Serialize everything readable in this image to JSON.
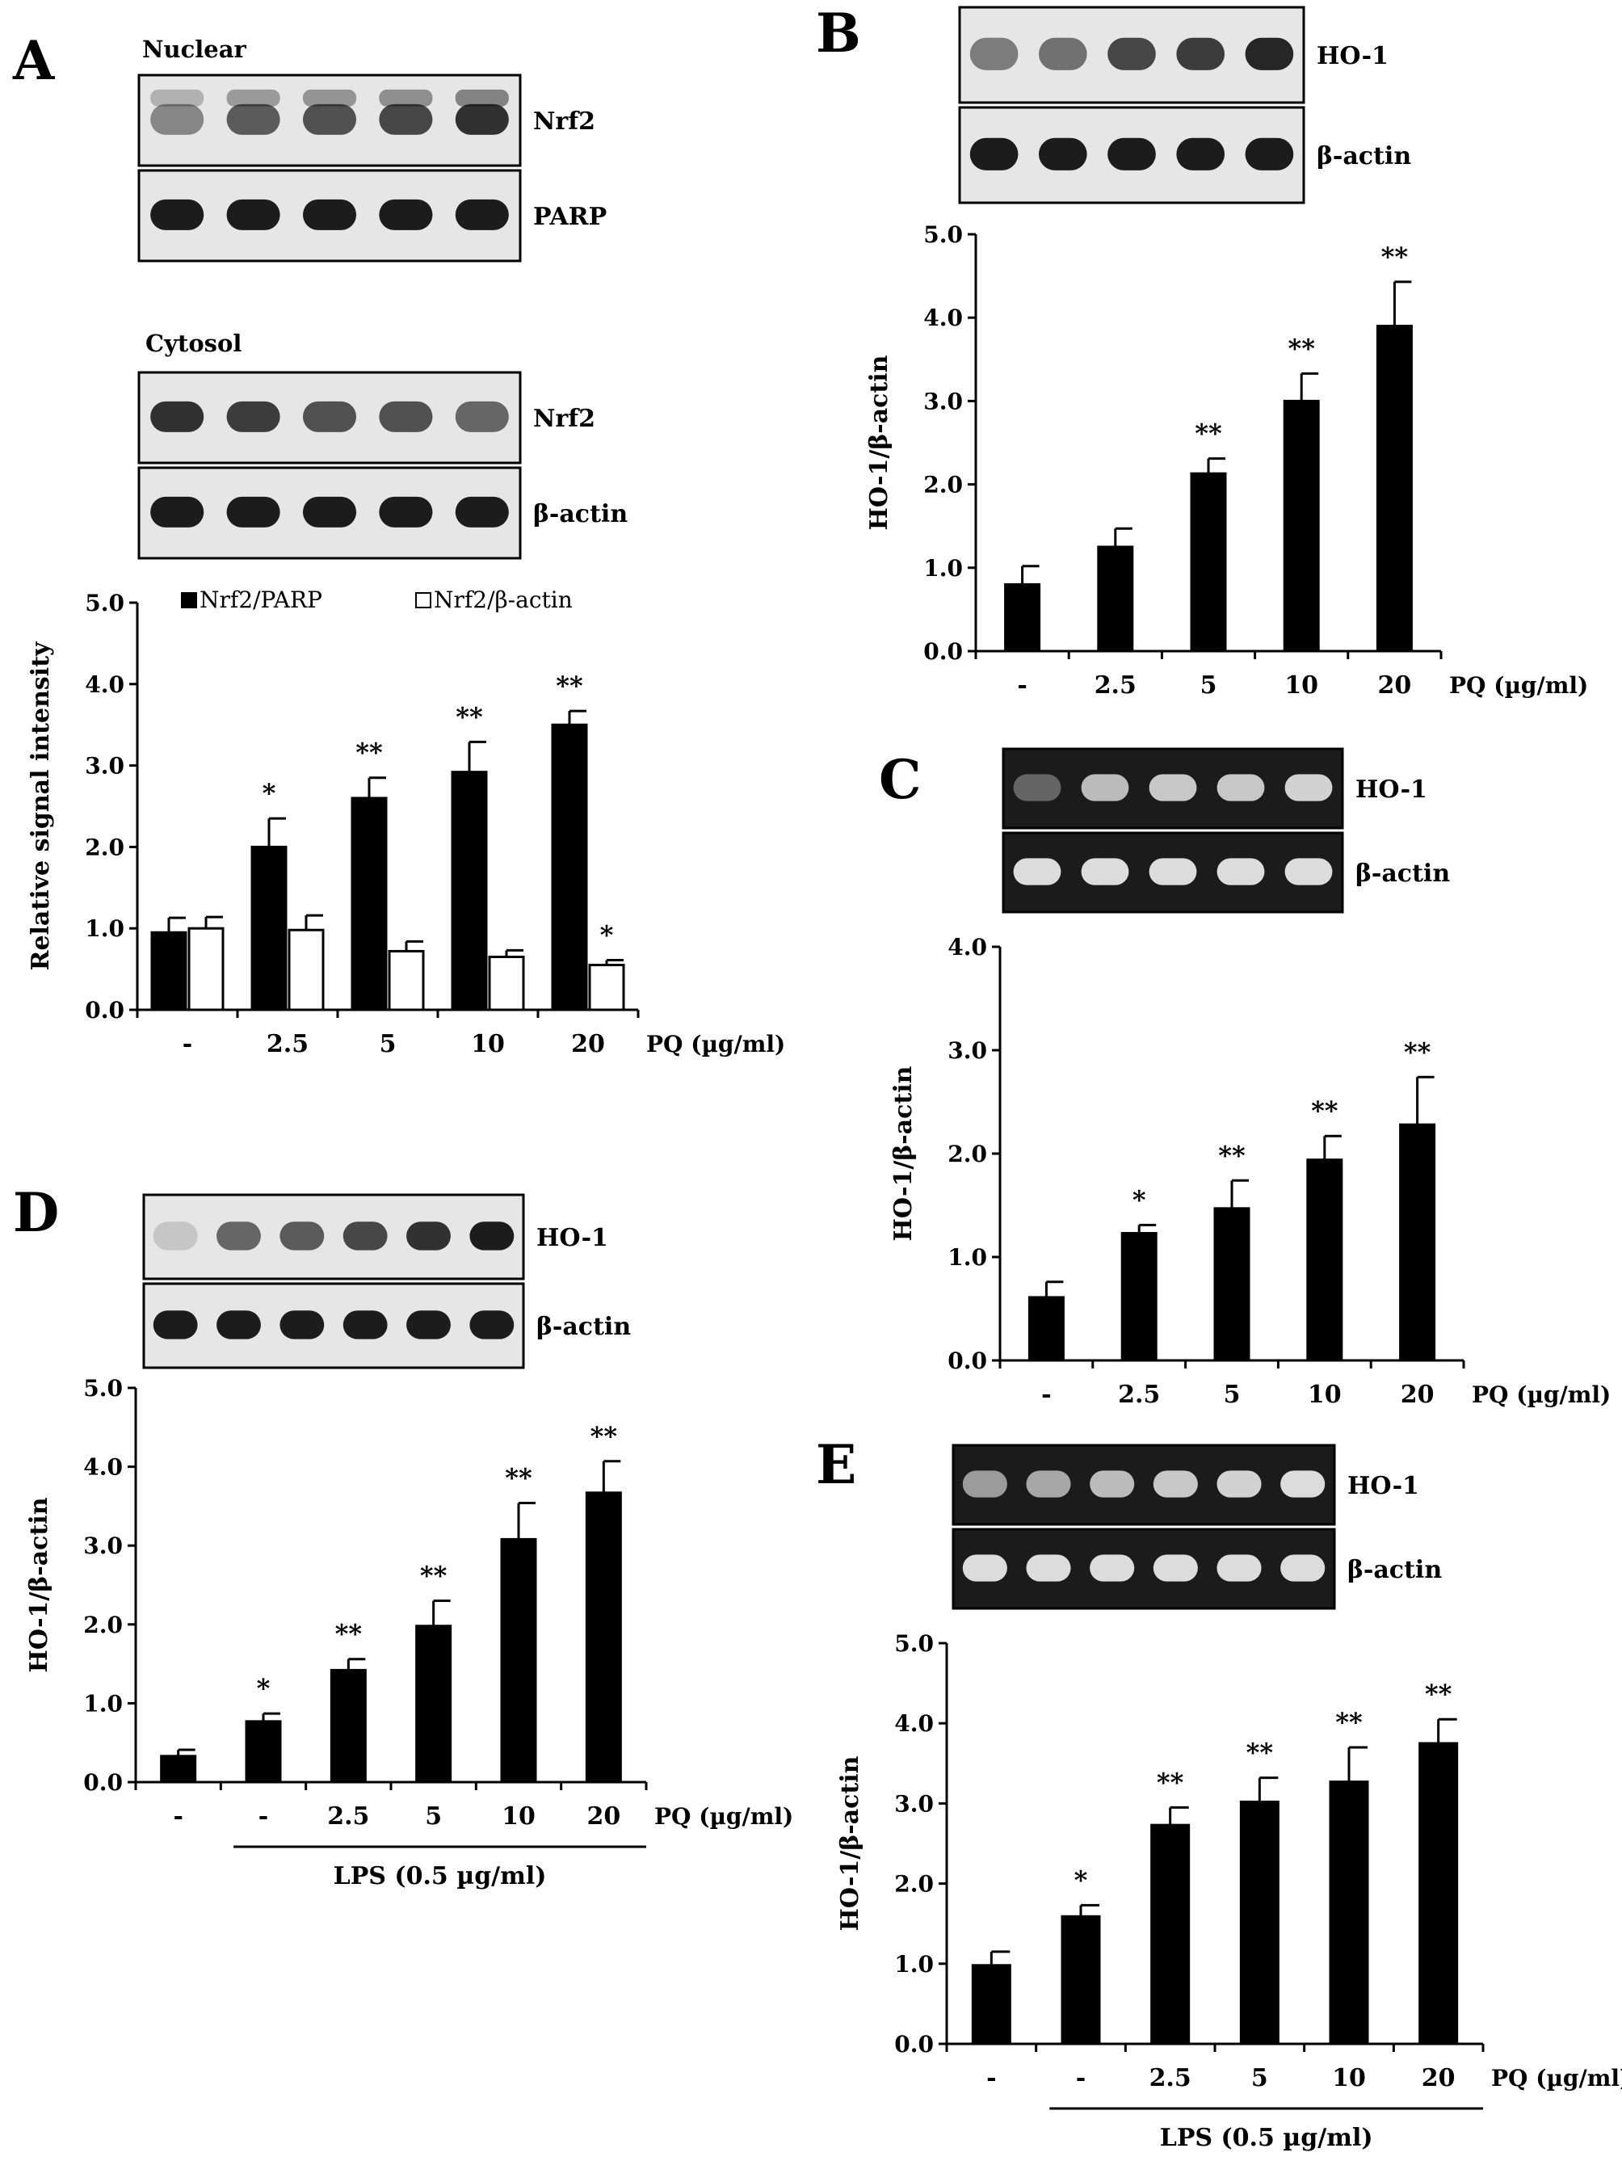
{
  "chart_data": [
    {
      "panel": "A",
      "type": "bar",
      "ylabel": "Relative signal intensity",
      "xunit": "PQ (µg/ml)",
      "categories": [
        "-",
        "2.5",
        "5",
        "10",
        "20"
      ],
      "ylim": [
        0,
        5.0
      ],
      "yticks": [
        "0.0",
        "1.0",
        "2.0",
        "3.0",
        "4.0",
        "5.0"
      ],
      "legend": "top",
      "series": [
        {
          "name": "Nrf2/PARP",
          "fill": "#000000",
          "values": [
            0.95,
            2.0,
            2.6,
            2.92,
            3.5
          ],
          "errors": [
            0.18,
            0.35,
            0.25,
            0.37,
            0.17
          ],
          "sig": [
            "",
            "*",
            "**",
            "**",
            "**"
          ]
        },
        {
          "name": "Nrf2/β-actin",
          "fill": "#ffffff",
          "values": [
            1.0,
            0.98,
            0.72,
            0.65,
            0.55
          ],
          "errors": [
            0.14,
            0.18,
            0.12,
            0.08,
            0.06
          ],
          "sig": [
            "",
            "",
            "",
            "",
            "*"
          ]
        }
      ],
      "blots": [
        {
          "title": "Nuclear",
          "type": "western",
          "lanes": [
            {
              "label": "Nrf2",
              "band_intensity": [
                0.45,
                0.65,
                0.7,
                0.75,
                0.85
              ],
              "doublet": true
            },
            {
              "label": "PARP",
              "band_intensity": [
                0.95,
                0.95,
                0.95,
                0.95,
                0.95
              ]
            }
          ]
        },
        {
          "title": "Cytosol",
          "type": "western",
          "lanes": [
            {
              "label": "Nrf2",
              "band_intensity": [
                0.85,
                0.8,
                0.7,
                0.7,
                0.6
              ]
            },
            {
              "label": "β-actin",
              "band_intensity": [
                0.95,
                0.95,
                0.95,
                0.95,
                0.95
              ]
            }
          ]
        }
      ]
    },
    {
      "panel": "B",
      "type": "bar",
      "ylabel": "HO-1/β-actin",
      "xunit": "PQ (µg/ml)",
      "categories": [
        "-",
        "2.5",
        "5",
        "10",
        "20"
      ],
      "ylim": [
        0,
        5.0
      ],
      "yticks": [
        "0.0",
        "1.0",
        "2.0",
        "3.0",
        "4.0",
        "5.0"
      ],
      "series": [
        {
          "fill": "#000000",
          "values": [
            0.8,
            1.25,
            2.13,
            3.0,
            3.9
          ],
          "errors": [
            0.22,
            0.22,
            0.18,
            0.33,
            0.53
          ],
          "sig": [
            "",
            "",
            "**",
            "**",
            "**"
          ]
        }
      ],
      "blots": [
        {
          "title": "",
          "type": "western",
          "lanes": [
            {
              "label": "HO-1",
              "band_intensity": [
                0.5,
                0.55,
                0.75,
                0.8,
                0.9
              ]
            },
            {
              "label": "β-actin",
              "band_intensity": [
                0.95,
                0.95,
                0.95,
                0.95,
                0.95
              ]
            }
          ]
        }
      ]
    },
    {
      "panel": "C",
      "type": "bar",
      "ylabel": "HO-1/β-actin",
      "xunit": "PQ (µg/ml)",
      "categories": [
        "-",
        "2.5",
        "5",
        "10",
        "20"
      ],
      "ylim": [
        0,
        4.0
      ],
      "yticks": [
        "0.0",
        "1.0",
        "2.0",
        "3.0",
        "4.0"
      ],
      "series": [
        {
          "fill": "#000000",
          "values": [
            0.61,
            1.23,
            1.47,
            1.94,
            2.28
          ],
          "errors": [
            0.15,
            0.08,
            0.27,
            0.23,
            0.46
          ],
          "sig": [
            "",
            "*",
            "**",
            "**",
            "**"
          ]
        }
      ],
      "blots": [
        {
          "title": "",
          "type": "gel",
          "lanes": [
            {
              "label": "HO-1",
              "band_intensity": [
                0.35,
                0.75,
                0.8,
                0.8,
                0.85
              ]
            },
            {
              "label": "β-actin",
              "band_intensity": [
                0.9,
                0.9,
                0.9,
                0.9,
                0.9
              ]
            }
          ]
        }
      ]
    },
    {
      "panel": "D",
      "type": "bar",
      "ylabel": "HO-1/β-actin",
      "xunit": "PQ (µg/ml)",
      "categories": [
        "-",
        "-",
        "2.5",
        "5",
        "10",
        "20"
      ],
      "group_label": "LPS (0.5 µg/ml)",
      "group_start_index": 1,
      "ylim": [
        0,
        5.0
      ],
      "yticks": [
        "0.0",
        "1.0",
        "2.0",
        "3.0",
        "4.0",
        "5.0"
      ],
      "series": [
        {
          "fill": "#000000",
          "values": [
            0.33,
            0.77,
            1.42,
            1.98,
            3.08,
            3.67
          ],
          "errors": [
            0.08,
            0.1,
            0.14,
            0.32,
            0.46,
            0.4
          ],
          "sig": [
            "",
            "*",
            "**",
            "**",
            "**",
            "**"
          ]
        }
      ],
      "blots": [
        {
          "title": "",
          "type": "western",
          "lanes": [
            {
              "label": "HO-1",
              "band_intensity": [
                0.15,
                0.6,
                0.65,
                0.75,
                0.85,
                0.95
              ]
            },
            {
              "label": "β-actin",
              "band_intensity": [
                0.95,
                0.95,
                0.95,
                0.95,
                0.95,
                0.95
              ]
            }
          ]
        }
      ]
    },
    {
      "panel": "E",
      "type": "bar",
      "ylabel": "HO-1/β-actin",
      "xunit": "PQ (µg/ml)",
      "categories": [
        "-",
        "-",
        "2.5",
        "5",
        "10",
        "20"
      ],
      "group_label": "LPS (0.5 µg/ml)",
      "group_start_index": 1,
      "ylim": [
        0,
        5.0
      ],
      "yticks": [
        "0.0",
        "1.0",
        "2.0",
        "3.0",
        "4.0",
        "5.0"
      ],
      "series": [
        {
          "fill": "#000000",
          "values": [
            0.98,
            1.59,
            2.73,
            3.02,
            3.27,
            3.75
          ],
          "errors": [
            0.17,
            0.14,
            0.22,
            0.3,
            0.43,
            0.3
          ],
          "sig": [
            "",
            "*",
            "**",
            "**",
            "**",
            "**"
          ]
        }
      ],
      "blots": [
        {
          "title": "",
          "type": "gel",
          "lanes": [
            {
              "label": "HO-1",
              "band_intensity": [
                0.6,
                0.65,
                0.75,
                0.8,
                0.85,
                0.9
              ]
            },
            {
              "label": "β-actin",
              "band_intensity": [
                0.9,
                0.9,
                0.9,
                0.9,
                0.9,
                0.9
              ]
            }
          ]
        }
      ]
    }
  ]
}
